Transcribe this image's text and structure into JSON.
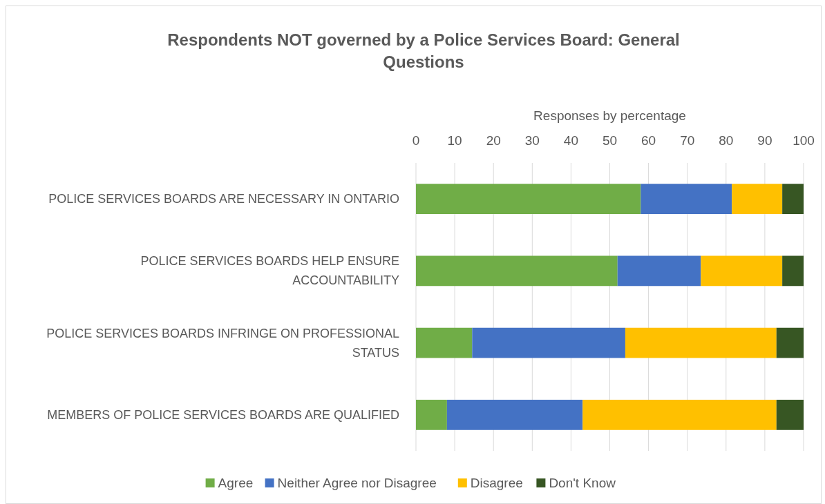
{
  "chart_data": {
    "type": "bar",
    "orientation": "horizontal",
    "stacked": true,
    "title": "Respondents NOT governed by a Police Services Board: General Questions",
    "xlabel": "Responses by percentage",
    "categories": [
      "POLICE SERVICES BOARDS ARE NECESSARY IN ONTARIO",
      "POLICE SERVICES BOARDS HELP ENSURE ACCOUNTABILITY",
      "POLICE SERVICES BOARDS INFRINGE ON PROFESSIONAL STATUS",
      "MEMBERS OF POLICE SERVICES BOARDS ARE QUALIFIED"
    ],
    "series": [
      {
        "name": "Agree",
        "color": "#70ad47",
        "values": [
          58,
          52,
          14.5,
          8
        ]
      },
      {
        "name": "Neither Agree nor Disagree",
        "color": "#4472c4",
        "values": [
          23.5,
          21.5,
          39.5,
          35
        ]
      },
      {
        "name": "Disagree",
        "color": "#ffc000",
        "values": [
          13,
          21,
          39,
          50
        ]
      },
      {
        "name": "Don't Know",
        "color": "#375623",
        "values": [
          5.5,
          5.5,
          7,
          7
        ]
      }
    ],
    "xlim": [
      0,
      100
    ],
    "xticks": [
      0,
      10,
      20,
      30,
      40,
      50,
      60,
      70,
      80,
      90,
      100
    ],
    "grid": "x",
    "legend": "bottom"
  }
}
